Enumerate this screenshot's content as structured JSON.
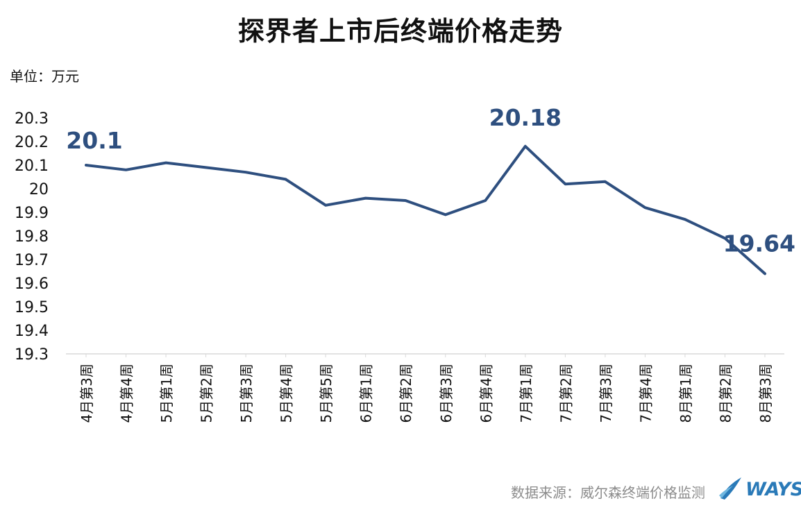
{
  "footer": {
    "source": "数据来源：威尔森终端价格监测",
    "logo_text": "WAYS",
    "logo_icon": "ways-logo-icon",
    "logo_color": "#2a7ab8"
  },
  "chart_data": {
    "type": "line",
    "title": "探界者上市后终端价格走势",
    "unit_label": "单位：万元",
    "xlabel": "",
    "ylabel": "",
    "ylim": [
      19.3,
      20.3
    ],
    "yticks": [
      "19.3",
      "19.4",
      "19.5",
      "19.6",
      "19.7",
      "19.8",
      "19.9",
      "20",
      "20.1",
      "20.2",
      "20.3"
    ],
    "grid": false,
    "line_color": "#2e4f7f",
    "categories": [
      "4月第3周",
      "4月第4周",
      "5月第1周",
      "5月第2周",
      "5月第3周",
      "5月第4周",
      "5月第5周",
      "6月第1周",
      "6月第2周",
      "6月第3周",
      "6月第4周",
      "7月第1周",
      "7月第2周",
      "7月第3周",
      "7月第4周",
      "8月第1周",
      "8月第2周",
      "8月第3周"
    ],
    "series": [
      {
        "values": [
          20.1,
          20.08,
          20.11,
          20.09,
          20.07,
          20.04,
          19.93,
          19.96,
          19.95,
          19.89,
          19.95,
          20.18,
          20.02,
          20.03,
          19.92,
          19.87,
          19.79,
          19.64
        ]
      }
    ],
    "annotations": [
      {
        "index": 0,
        "label": "20.1"
      },
      {
        "index": 11,
        "label": "20.18"
      },
      {
        "index": 17,
        "label": "19.64"
      }
    ]
  }
}
